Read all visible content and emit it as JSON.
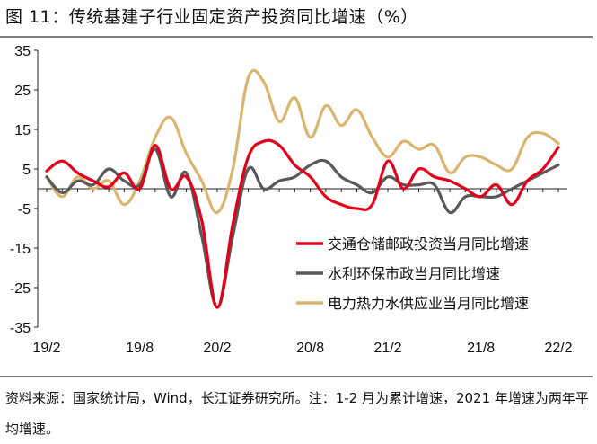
{
  "header": {
    "title": "图 11：传统基建子行业固定资产投资同比增速（%）"
  },
  "footer": {
    "source": "资料来源：国家统计局，Wind，长江证券研究所。注：1-2 月为累计增速，2021 年增速为两年平均增速。"
  },
  "chart_data": {
    "type": "line",
    "title": "传统基建子行业固定资产投资同比增速（%）",
    "ylim": [
      -35,
      35
    ],
    "yticks": [
      -35,
      -25,
      -15,
      -5,
      5,
      15,
      25,
      35
    ],
    "xticks": [
      "19/2",
      "19/8",
      "20/2",
      "20/8",
      "21/2",
      "21/8",
      "22/2"
    ],
    "x": [
      "19/2",
      "19/3",
      "19/4",
      "19/5",
      "19/6",
      "19/7",
      "19/8",
      "19/9",
      "19/10",
      "19/11",
      "19/12",
      "20/2",
      "20/3",
      "20/4",
      "20/5",
      "20/6",
      "20/7",
      "20/8",
      "20/9",
      "20/10",
      "20/11",
      "20/12",
      "21/2",
      "21/3",
      "21/4",
      "21/5",
      "21/6",
      "21/7",
      "21/8",
      "21/9",
      "21/10",
      "21/11",
      "21/12",
      "22/2"
    ],
    "legend_position": "right",
    "series": [
      {
        "name": "交通仓储邮政投资当月同比增速",
        "color": "#e2001a",
        "values": [
          4.5,
          7,
          4,
          2,
          0.5,
          4,
          0,
          11,
          0,
          3,
          -8,
          -30,
          -9,
          8,
          12,
          11,
          6,
          3,
          -2,
          -4,
          -5,
          -4,
          7,
          0,
          5,
          3,
          2,
          0,
          -2,
          1,
          -4,
          2,
          5,
          10.5
        ]
      },
      {
        "name": "水利环保市政当月同比增速",
        "color": "#595959",
        "values": [
          3,
          -1,
          2,
          1,
          5,
          2,
          1,
          10,
          -2,
          4,
          -12,
          -30,
          -12,
          5,
          0,
          2,
          3,
          6,
          7,
          3,
          1,
          -1,
          3,
          1,
          1,
          1,
          -6,
          -2,
          -2,
          -2,
          0,
          2,
          4,
          6
        ]
      },
      {
        "name": "电力热力水供应业当月同比增速",
        "color": "#d9b56f",
        "values": [
          3,
          -2,
          3,
          0,
          2,
          -4,
          2,
          13,
          18,
          9,
          2,
          -6,
          5,
          28,
          27,
          17,
          23,
          13,
          21,
          16,
          20,
          13,
          8,
          12,
          10,
          11,
          4,
          8,
          8,
          6,
          5,
          13,
          14,
          11.5
        ]
      }
    ]
  }
}
